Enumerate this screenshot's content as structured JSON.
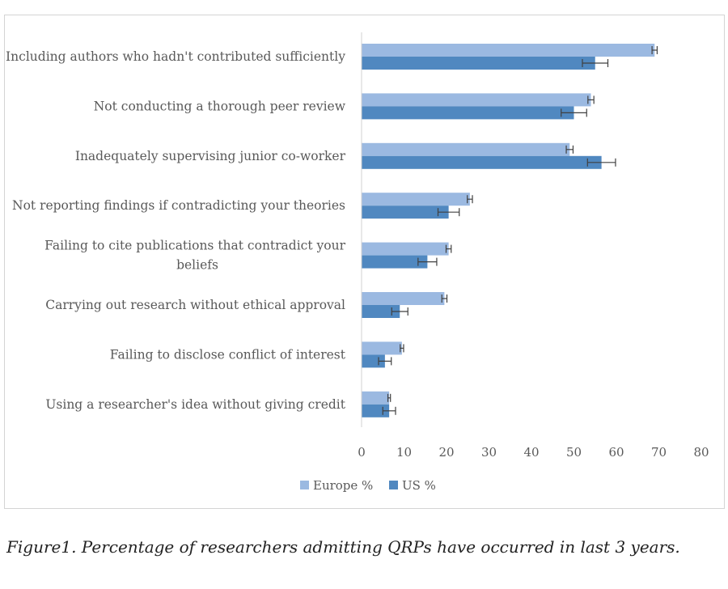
{
  "colors": {
    "europe": "#9bb9e1",
    "us": "#5088c0",
    "axis": "#d0d0d0",
    "error_bar": "#404040"
  },
  "caption": "Figure1.  Percentage of researchers admitting QRPs have occurred in last 3 years.",
  "chart_data": {
    "type": "bar",
    "orientation": "horizontal",
    "categories": [
      [
        "Including authors who hadn't contributed sufficiently"
      ],
      [
        "Not conducting a thorough peer review"
      ],
      [
        "Inadequately supervising junior co-worker"
      ],
      [
        "Not reporting findings if contradicting your theories"
      ],
      [
        "Failing to cite publications that contradict your",
        "beliefs"
      ],
      [
        "Carrying out research without ethical approval"
      ],
      [
        "Failing to disclose conflict of interest"
      ],
      [
        "Using a researcher's idea without giving credit"
      ]
    ],
    "series": [
      {
        "name": "Europe %",
        "values": [
          69,
          54,
          49,
          25.5,
          20.5,
          19.5,
          9.5,
          6.5
        ],
        "errors": [
          0.6,
          0.7,
          0.8,
          0.6,
          0.6,
          0.6,
          0.4,
          0.3
        ]
      },
      {
        "name": "US %",
        "values": [
          55,
          50,
          56.5,
          20.5,
          15.5,
          9,
          5.5,
          6.5
        ],
        "errors": [
          3,
          3,
          3.3,
          2.5,
          2.2,
          1.9,
          1.5,
          1.5
        ]
      }
    ],
    "xlim": [
      0,
      80
    ],
    "xticks": [
      0,
      10,
      20,
      30,
      40,
      50,
      60,
      70,
      80
    ],
    "grid": false,
    "legend_position": "bottom"
  }
}
